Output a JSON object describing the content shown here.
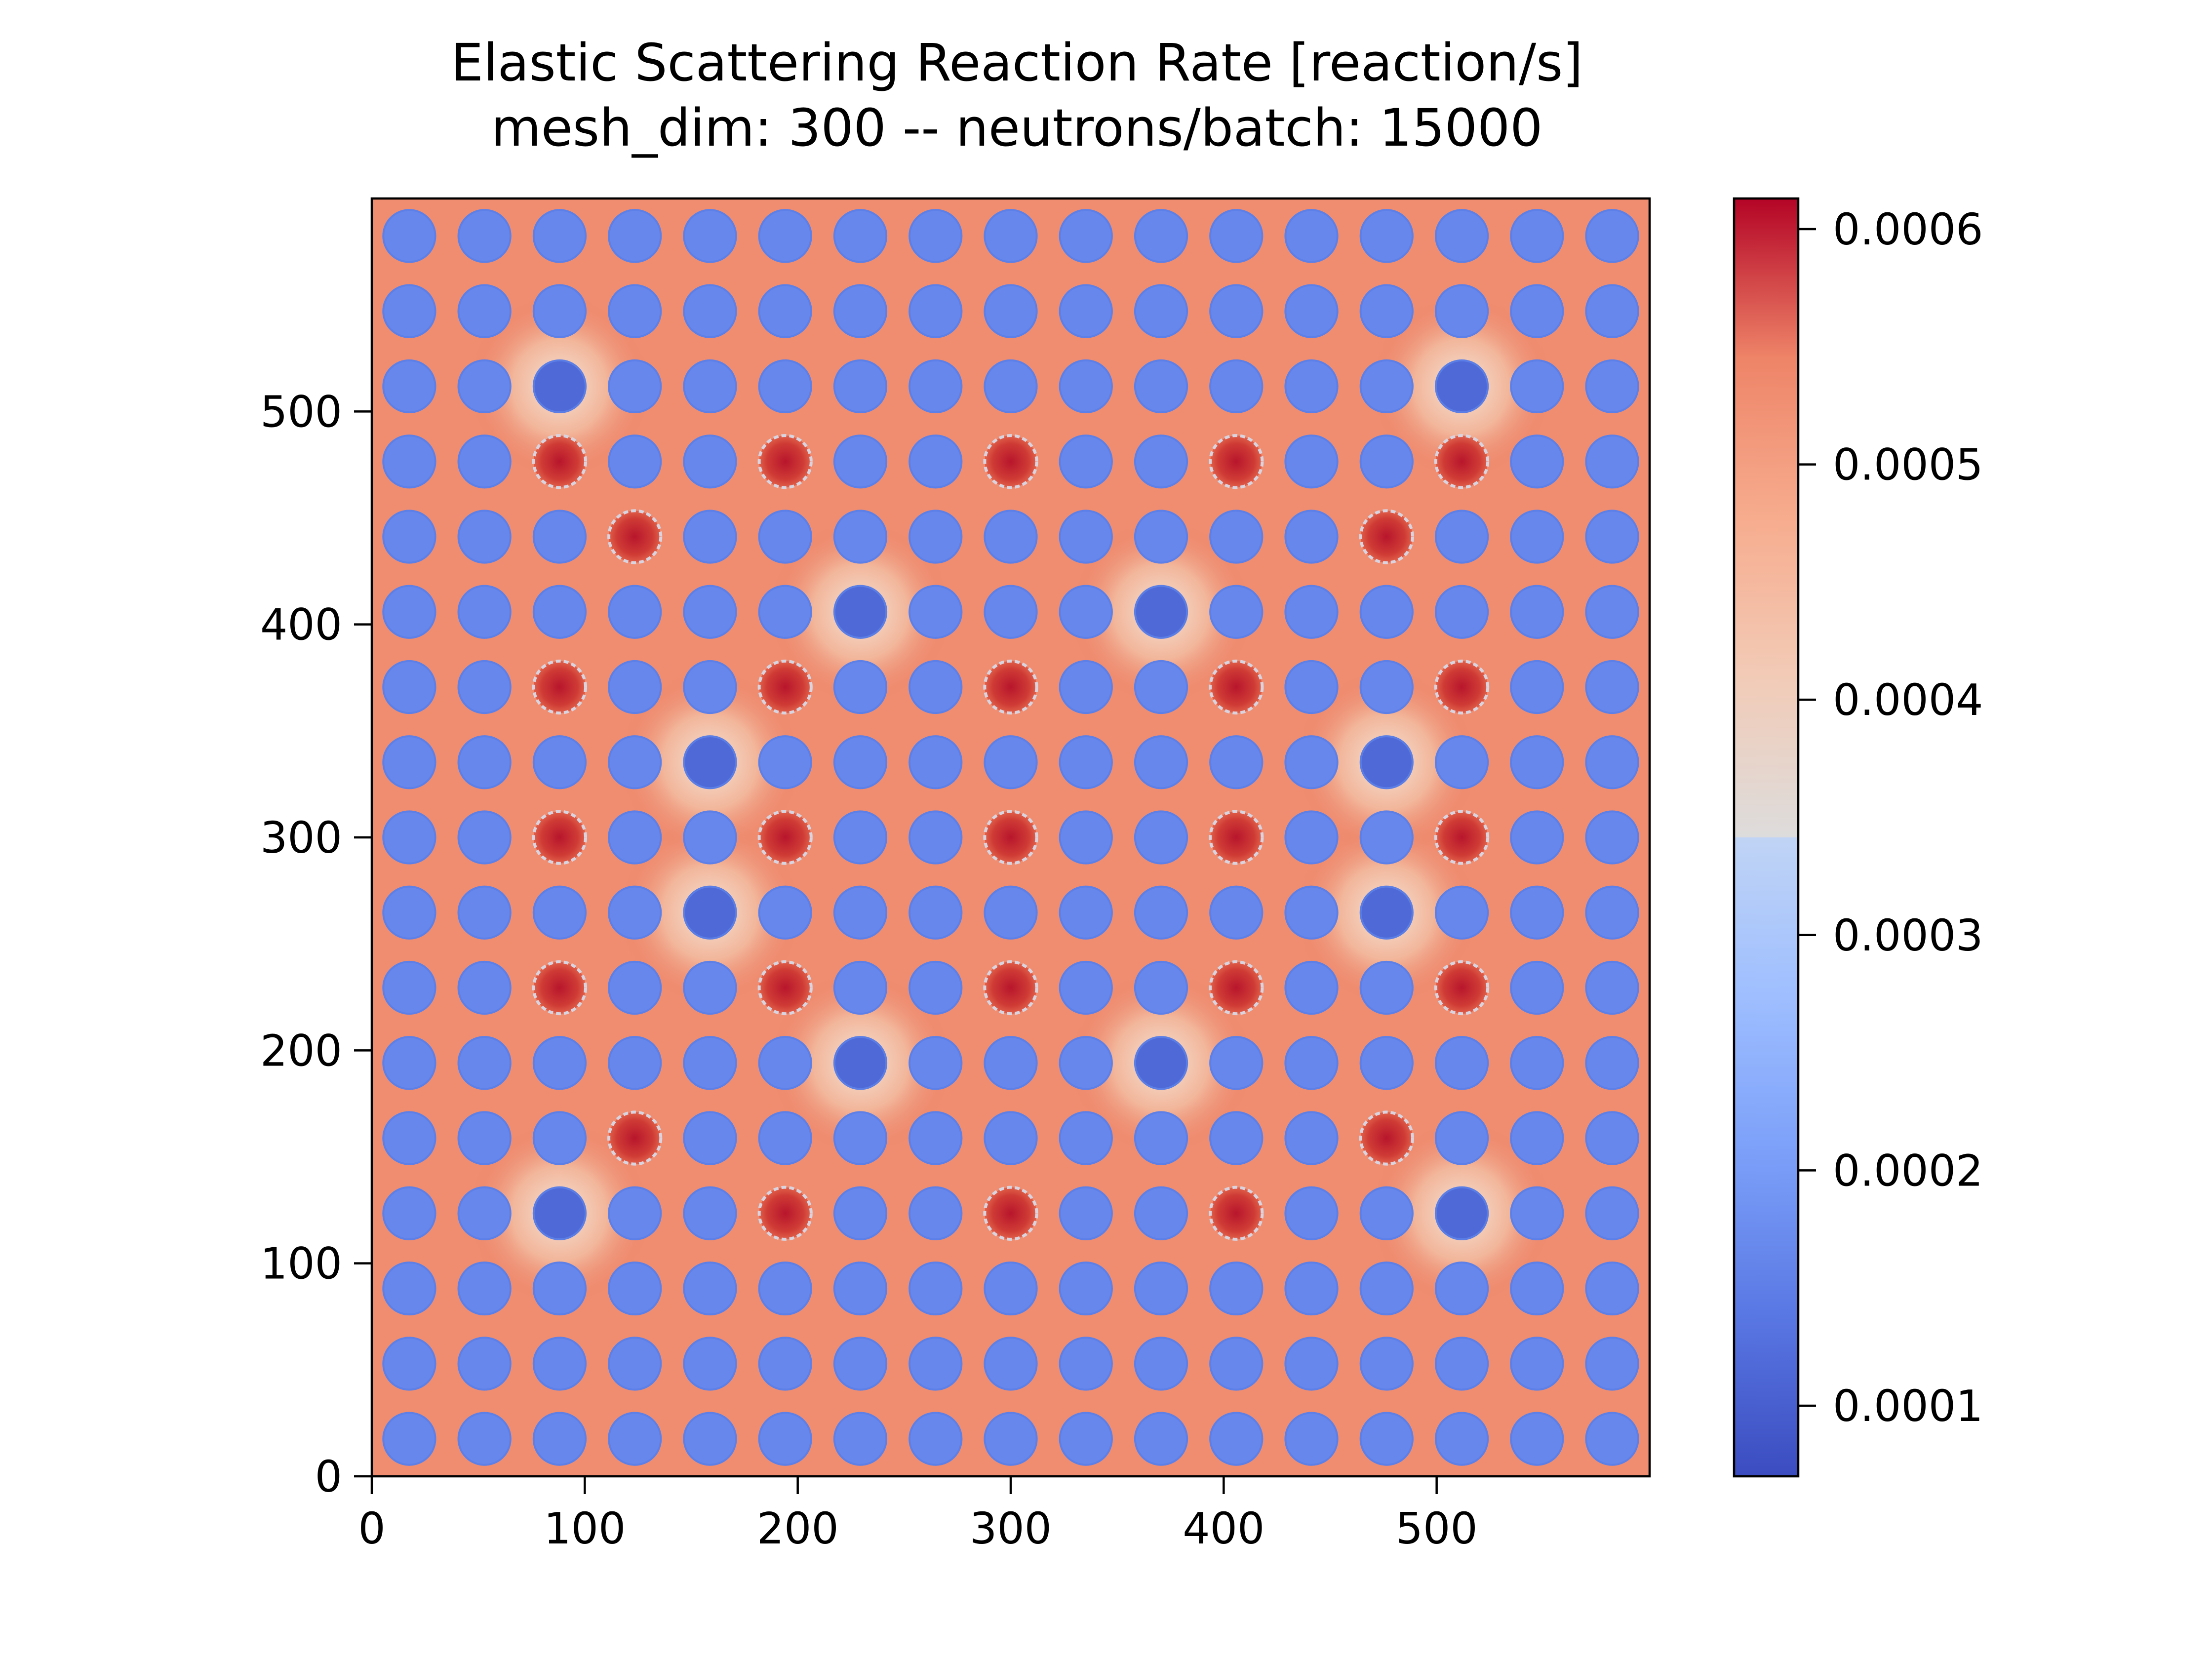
{
  "chart_data": {
    "type": "heatmap",
    "title": "Elastic Scattering Reaction Rate [reaction/s]",
    "subtitle": "mesh_dim: 300 -- neutrons/batch: 15000",
    "xlabel": "",
    "ylabel": "",
    "xlim": [
      0,
      600
    ],
    "ylim": [
      0,
      600
    ],
    "x_ticks": [
      0,
      100,
      200,
      300,
      400,
      500
    ],
    "y_ticks": [
      0,
      100,
      200,
      300,
      400,
      500
    ],
    "colormap": "coolwarm",
    "colorbar": {
      "vmin": 7e-05,
      "vmax": 0.000613,
      "ticks": [
        "0.0001",
        "0.0002",
        "0.0003",
        "0.0004",
        "0.0005",
        "0.0006"
      ],
      "tick_values": [
        0.0001,
        0.0002,
        0.0003,
        0.0004,
        0.0005,
        0.0006
      ]
    },
    "lattice": {
      "size": 17,
      "pitch": 35.3,
      "origin": 17.6,
      "fuel_pin_radius": 12.2,
      "moderator_value": 0.00053,
      "fuel_pin_value": 0.000165,
      "absorber_pin_value": 0.000115,
      "guide_tube_value": 0.000555,
      "guide_tubes": [
        [
          2,
          13
        ],
        [
          5,
          13
        ],
        [
          8,
          13
        ],
        [
          11,
          13
        ],
        [
          14,
          13
        ],
        [
          3,
          12
        ],
        [
          13,
          12
        ],
        [
          2,
          10
        ],
        [
          5,
          10
        ],
        [
          8,
          10
        ],
        [
          11,
          10
        ],
        [
          14,
          10
        ],
        [
          2,
          8
        ],
        [
          5,
          8
        ],
        [
          8,
          8
        ],
        [
          11,
          8
        ],
        [
          14,
          8
        ],
        [
          2,
          6
        ],
        [
          5,
          6
        ],
        [
          8,
          6
        ],
        [
          11,
          6
        ],
        [
          14,
          6
        ],
        [
          3,
          4
        ],
        [
          13,
          4
        ],
        [
          5,
          3
        ],
        [
          8,
          3
        ],
        [
          11,
          3
        ]
      ],
      "absorber_pins": [
        [
          2,
          3
        ],
        [
          14,
          3
        ],
        [
          6,
          5
        ],
        [
          10,
          5
        ],
        [
          4,
          7
        ],
        [
          13,
          7
        ],
        [
          4,
          9
        ],
        [
          13,
          9
        ],
        [
          6,
          11
        ],
        [
          10,
          11
        ],
        [
          2,
          14
        ],
        [
          14,
          14
        ]
      ]
    }
  }
}
